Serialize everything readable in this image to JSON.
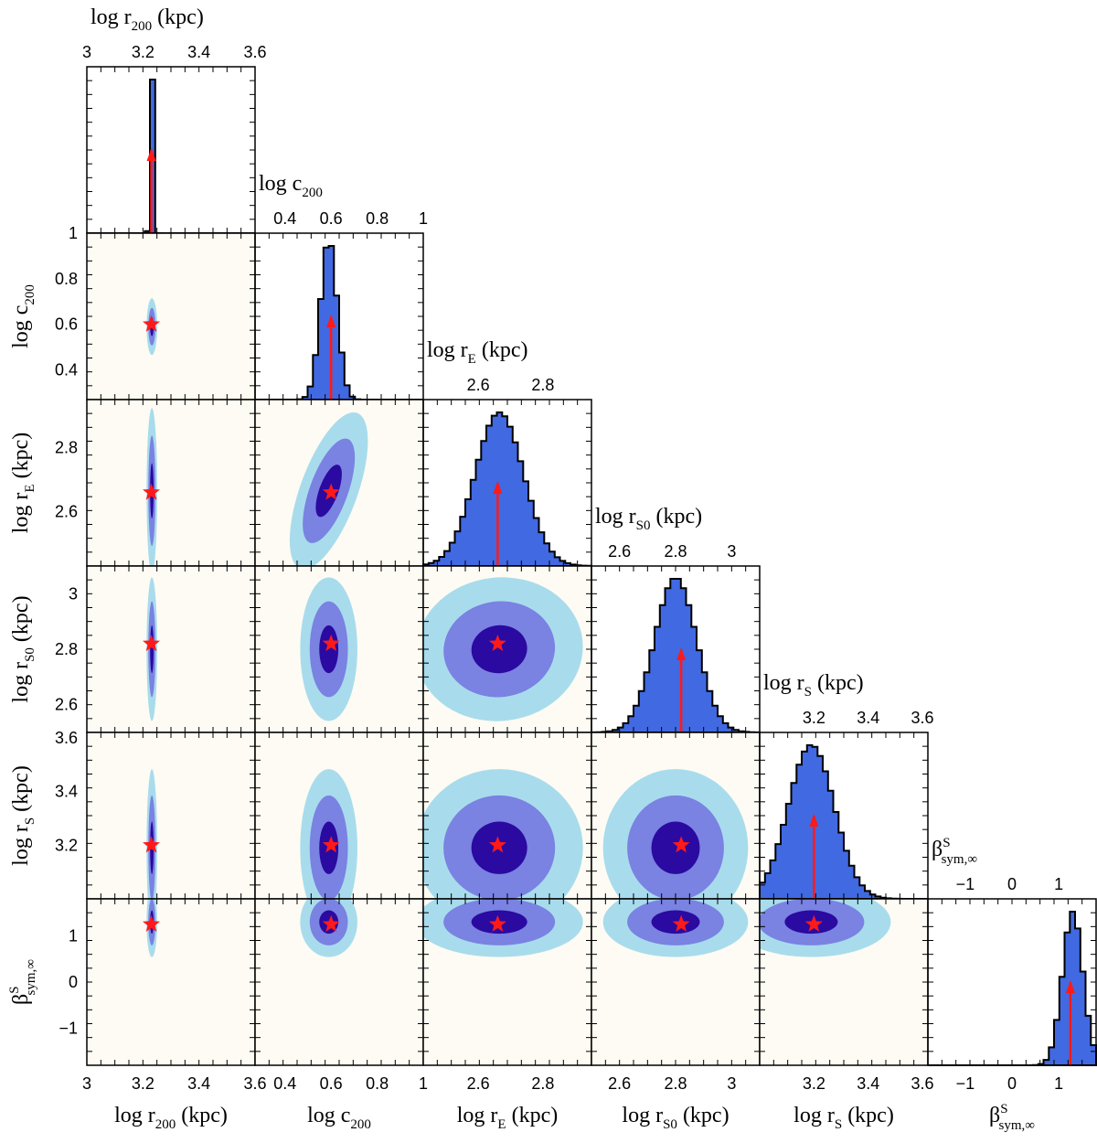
{
  "chart_data": {
    "type": "corner",
    "parameters": [
      {
        "key": "log_r200",
        "label": "log r200 (kpc)",
        "label_parts": {
          "main": "log r",
          "sub": "200",
          "sup": "",
          "unit": "(kpc)"
        },
        "range": [
          3.0,
          3.6
        ],
        "ticks": [
          "3",
          "3.2",
          "3.4",
          "3.6"
        ],
        "tick_values": [
          3.0,
          3.2,
          3.4,
          3.6
        ],
        "best_fit": 3.23,
        "hist_mean": 3.232,
        "hist_sigma": 0.0055
      },
      {
        "key": "log_c200",
        "label": "log c200",
        "label_parts": {
          "main": "log c",
          "sub": "200",
          "sup": "",
          "unit": ""
        },
        "range": [
          0.27,
          1.0
        ],
        "ticks": [
          "0.4",
          "0.6",
          "0.8",
          "1"
        ],
        "tick_values": [
          0.4,
          0.6,
          0.8,
          1.0
        ],
        "best_fit": 0.6,
        "hist_mean": 0.59,
        "hist_sigma": 0.036
      },
      {
        "key": "log_rE",
        "label": "log rE (kpc)",
        "label_parts": {
          "main": "log r",
          "sub": "E",
          "sup": "",
          "unit": "(kpc)"
        },
        "range": [
          2.43,
          2.95
        ],
        "ticks": [
          "2.6",
          "2.8"
        ],
        "tick_values": [
          2.6,
          2.8
        ],
        "best_fit": 2.66,
        "hist_mean": 2.665,
        "hist_sigma": 0.075
      },
      {
        "key": "log_rS0",
        "label": "log rS0 (kpc)",
        "label_parts": {
          "main": "log r",
          "sub": "S0",
          "sup": "",
          "unit": "(kpc)"
        },
        "range": [
          2.5,
          3.1
        ],
        "ticks": [
          "2.6",
          "2.8",
          "3"
        ],
        "tick_values": [
          2.6,
          2.8,
          3.0
        ],
        "best_fit": 2.82,
        "hist_mean": 2.8,
        "hist_sigma": 0.075
      },
      {
        "key": "log_rS",
        "label": "log rS (kpc)",
        "label_parts": {
          "main": "log r",
          "sub": "S",
          "sup": "",
          "unit": "(kpc)"
        },
        "range": [
          3.0,
          3.62
        ],
        "ticks": [
          "3.2",
          "3.4",
          "3.6"
        ],
        "tick_values": [
          3.2,
          3.4,
          3.6
        ],
        "best_fit": 3.2,
        "hist_mean": 3.19,
        "hist_sigma": 0.085
      },
      {
        "key": "beta_sym_inf_S",
        "label": "β^S sym,∞",
        "label_parts": {
          "main": "β",
          "sub": "sym,∞",
          "sup": "S",
          "unit": ""
        },
        "range": [
          -1.8,
          1.8
        ],
        "ticks": [
          "−1",
          "0",
          "1"
        ],
        "tick_values": [
          -1,
          0,
          1
        ],
        "best_fit": 1.25,
        "hist_mean": 1.3,
        "hist_sigma": 0.22
      }
    ],
    "bottom_ticks": [
      {
        "labels": [
          "3",
          "3.2",
          "3.4",
          "3.6"
        ],
        "values": [
          3.0,
          3.2,
          3.4,
          3.6
        ]
      },
      {
        "labels": [
          "0.4",
          "0.6",
          "0.8",
          "1"
        ],
        "values": [
          0.4,
          0.6,
          0.8,
          1.0
        ]
      },
      {
        "labels": [
          "2.6",
          "2.8"
        ],
        "values": [
          2.6,
          2.8
        ]
      },
      {
        "labels": [
          "2.6",
          "2.8",
          "3"
        ],
        "values": [
          2.6,
          2.8,
          3.0
        ]
      },
      {
        "labels": [
          "3.2",
          "3.4",
          "3.6"
        ],
        "values": [
          3.2,
          3.4,
          3.6
        ]
      },
      {
        "labels": [
          "−1",
          "0",
          "1"
        ],
        "values": [
          -1,
          0,
          1
        ]
      }
    ],
    "left_ticks": [
      {
        "labels": [],
        "values": []
      },
      {
        "labels": [
          "1",
          "0.8",
          "0.6",
          "0.4"
        ],
        "values": [
          1.0,
          0.8,
          0.6,
          0.4
        ]
      },
      {
        "labels": [
          "2.8",
          "2.6"
        ],
        "values": [
          2.8,
          2.6
        ]
      },
      {
        "labels": [
          "3",
          "2.8",
          "2.6"
        ],
        "values": [
          3.0,
          2.8,
          2.6
        ]
      },
      {
        "labels": [
          "3.6",
          "3.4",
          "3.2"
        ],
        "values": [
          3.6,
          3.4,
          3.2
        ]
      },
      {
        "labels": [
          "1",
          "0",
          "−1"
        ],
        "values": [
          1,
          0,
          -1
        ]
      }
    ],
    "pair_correlations": {
      "2_1": -0.3,
      "3_2": 0.1,
      "4_1": 0.0,
      "4_2": 0.0,
      "4_3": 0.0,
      "5_1": 0.0,
      "5_2": 0.0,
      "5_3": 0.0,
      "5_4": 0.0
    },
    "contour_levels_sigma": [
      1,
      2,
      3
    ],
    "colors": {
      "hist_fill": "#4169e1",
      "hist_outline": "#000000",
      "contour_1sigma": "#2a0aa0",
      "contour_2sigma": "#7a82e2",
      "contour_3sigma": "#a8dcec",
      "panel_background": "#fdfbf3",
      "best_fit_marker": "#ff1a1a"
    },
    "markers": {
      "best_fit": "star",
      "histogram": "arrow"
    }
  }
}
